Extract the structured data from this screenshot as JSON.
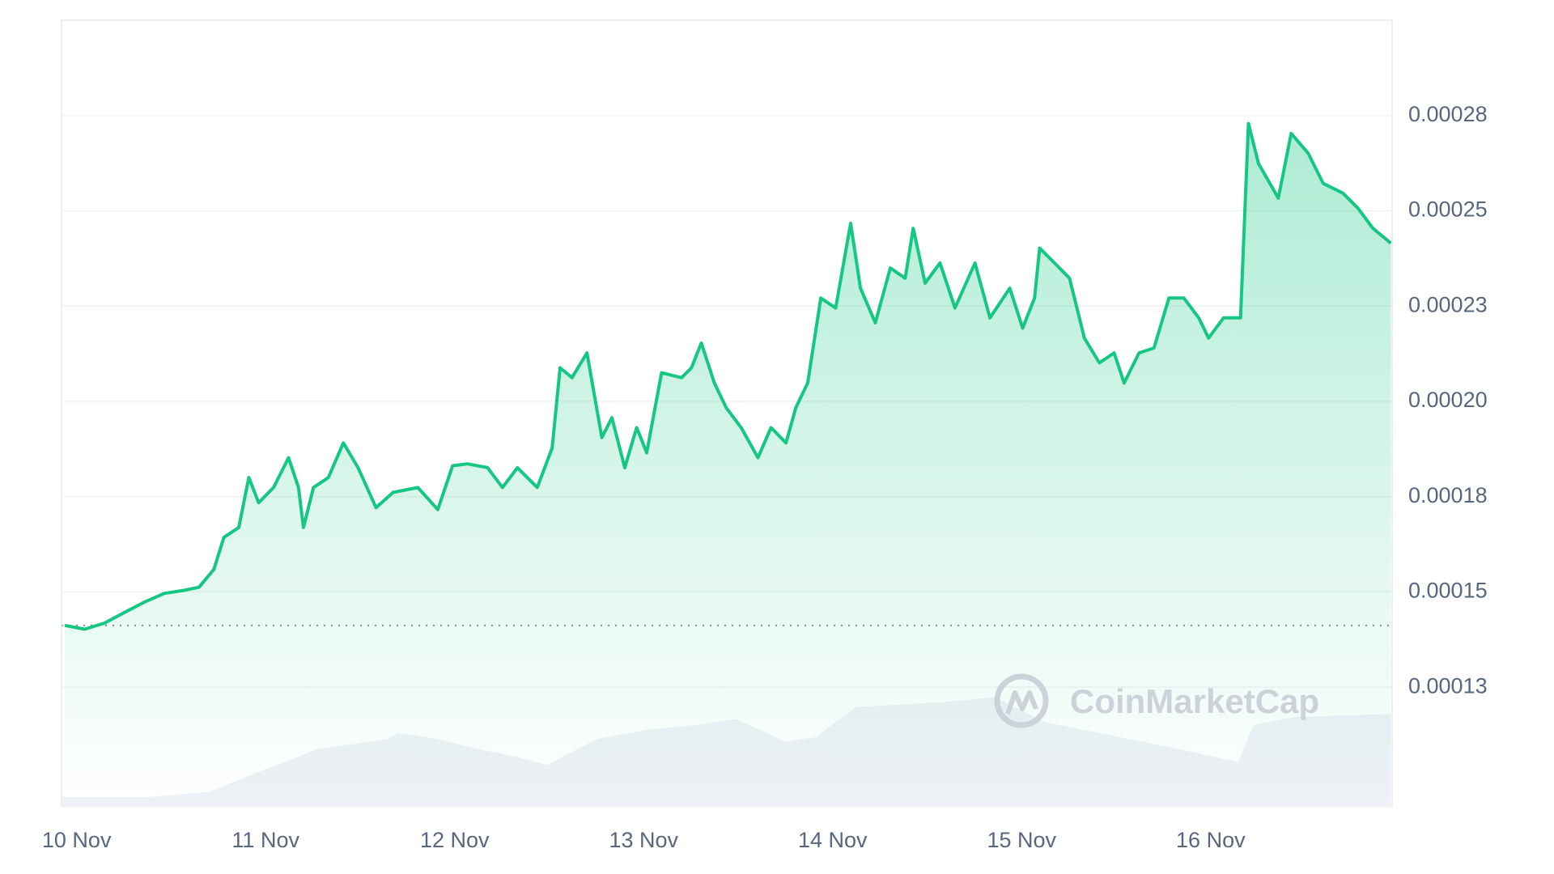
{
  "chart_data": {
    "type": "line",
    "watermark": "CoinMarketCap",
    "color": "#16c784",
    "baseline": 0.0001412,
    "x": [
      -0.063,
      0.042,
      0.147,
      0.253,
      0.358,
      0.463,
      0.568,
      0.647,
      0.726,
      0.779,
      0.858,
      0.911,
      0.963,
      1.042,
      1.121,
      1.174,
      1.2,
      1.253,
      1.332,
      1.411,
      1.489,
      1.584,
      1.674,
      1.805,
      1.911,
      1.989,
      2.068,
      2.174,
      2.253,
      2.332,
      2.437,
      2.516,
      2.558,
      2.621,
      2.7,
      2.779,
      2.832,
      2.9,
      2.963,
      3.016,
      3.095,
      3.2,
      3.253,
      3.305,
      3.374,
      3.437,
      3.516,
      3.605,
      3.674,
      3.753,
      3.805,
      3.868,
      3.937,
      4.016,
      4.095,
      4.147,
      4.226,
      4.305,
      4.384,
      4.426,
      4.489,
      4.568,
      4.647,
      4.753,
      4.832,
      4.937,
      5.005,
      5.068,
      5.095,
      5.174,
      5.253,
      5.332,
      5.411,
      5.489,
      5.542,
      5.621,
      5.7,
      5.779,
      5.858,
      5.937,
      5.989,
      6.068,
      6.158,
      6.2,
      6.253,
      6.358,
      6.426,
      6.516,
      6.595,
      6.7,
      6.779,
      6.858,
      6.953
    ],
    "values": [
      0.0001412,
      0.0001402,
      0.0001418,
      0.0001446,
      0.0001473,
      0.0001496,
      0.0001504,
      0.0001512,
      0.0001559,
      0.0001643,
      0.0001669,
      0.00018,
      0.0001734,
      0.0001774,
      0.0001852,
      0.0001774,
      0.0001669,
      0.0001774,
      0.00018,
      0.0001891,
      0.0001826,
      0.0001721,
      0.0001761,
      0.0001774,
      0.0001716,
      0.0001831,
      0.0001836,
      0.0001826,
      0.0001774,
      0.0001826,
      0.0001774,
      0.0001878,
      0.0002088,
      0.0002062,
      0.0002127,
      0.0001905,
      0.0001957,
      0.0001826,
      0.0001931,
      0.0001865,
      0.0002075,
      0.0002062,
      0.0002088,
      0.0002153,
      0.0002048,
      0.0001983,
      0.0001931,
      0.0001852,
      0.0001931,
      0.0001891,
      0.0001983,
      0.0002048,
      0.0002271,
      0.0002245,
      0.0002467,
      0.0002297,
      0.0002206,
      0.000235,
      0.0002323,
      0.0002454,
      0.000231,
      0.0002363,
      0.0002245,
      0.0002363,
      0.0002219,
      0.0002297,
      0.0002192,
      0.0002271,
      0.0002402,
      0.0002363,
      0.0002323,
      0.0002166,
      0.0002101,
      0.0002127,
      0.0002048,
      0.0002127,
      0.000214,
      0.0002271,
      0.0002271,
      0.0002219,
      0.0002166,
      0.0002219,
      0.0002219,
      0.0002729,
      0.0002624,
      0.0002533,
      0.0002703,
      0.0002651,
      0.0002572,
      0.0002546,
      0.0002507,
      0.0002454,
      0.0002415
    ],
    "volume": {
      "color": "#eff1f6",
      "x": [
        -0.079,
        0.384,
        0.7,
        0.963,
        1.279,
        1.647,
        1.7,
        1.911,
        2.121,
        2.332,
        2.489,
        2.753,
        3.016,
        3.279,
        3.489,
        3.753,
        3.911,
        4.121,
        4.595,
        4.858,
        5.121,
        5.384,
        5.647,
        6.147,
        6.226,
        6.437,
        6.953
      ],
      "values": [
        8.3,
        8.3,
        12.5,
        29.2,
        48.3,
        56.7,
        61.7,
        56.7,
        48.3,
        41.7,
        35,
        56.7,
        64.2,
        68.3,
        73.3,
        54.2,
        58.3,
        83.3,
        87.5,
        91.7,
        70.8,
        62.5,
        54.2,
        37.5,
        68.3,
        75,
        77.5
      ],
      "ylim": [
        0,
        100
      ]
    },
    "xlim": [
      -0.08,
      6.96
    ],
    "xticks": [
      {
        "value": 0,
        "label": "10 Nov"
      },
      {
        "value": 1,
        "label": "11 Nov"
      },
      {
        "value": 2,
        "label": "12 Nov"
      },
      {
        "value": 3,
        "label": "13 Nov"
      },
      {
        "value": 4,
        "label": "14 Nov"
      },
      {
        "value": 5,
        "label": "15 Nov"
      },
      {
        "value": 6,
        "label": "16 Nov"
      }
    ],
    "ylim": [
      9.36e-05,
      0.0003
    ],
    "yticks": [
      {
        "value": 0.000125,
        "label": "0.00013"
      },
      {
        "value": 0.00015,
        "label": "0.00015"
      },
      {
        "value": 0.000175,
        "label": "0.00018"
      },
      {
        "value": 0.0002,
        "label": "0.00020"
      },
      {
        "value": 0.000225,
        "label": "0.00023"
      },
      {
        "value": 0.00025,
        "label": "0.00025"
      },
      {
        "value": 0.000275,
        "label": "0.00028"
      }
    ],
    "grid": true
  }
}
